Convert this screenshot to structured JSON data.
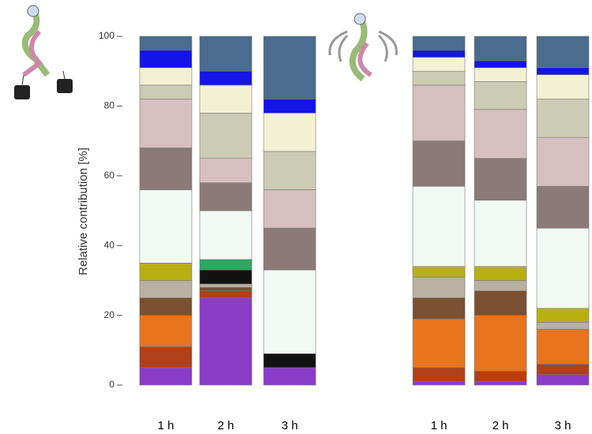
{
  "chart_data": {
    "type": "bar",
    "stacked": true,
    "y_label": "Relative contribution [%]",
    "categories": [
      "1 h",
      "2 h",
      "3 h",
      "1 h",
      "2 h",
      "3 h"
    ],
    "ylim": [
      0,
      100
    ],
    "yticks": [
      0,
      20,
      40,
      60,
      80,
      100
    ],
    "series": [
      {
        "color": "#8a3cc8",
        "values": [
          5,
          25,
          5,
          1,
          1,
          3
        ]
      },
      {
        "color": "#b0401a",
        "values": [
          6,
          2,
          0,
          4,
          3,
          3
        ]
      },
      {
        "color": "#e8741e",
        "values": [
          9,
          0,
          0,
          14,
          16,
          10
        ]
      },
      {
        "color": "#7a5030",
        "values": [
          5,
          1,
          0,
          6,
          7,
          0
        ]
      },
      {
        "color": "#b8b0a0",
        "values": [
          5,
          1,
          0,
          6,
          3,
          2
        ]
      },
      {
        "color": "#111111",
        "values": [
          0,
          4,
          4,
          0,
          0,
          0
        ]
      },
      {
        "color": "#b8b010",
        "values": [
          5,
          0,
          0,
          3,
          4,
          4
        ]
      },
      {
        "color": "#2aa860",
        "values": [
          0,
          3,
          0,
          0,
          0,
          0
        ]
      },
      {
        "color": "#f2faf6",
        "values": [
          21,
          14,
          24,
          23,
          19,
          23
        ]
      },
      {
        "color": "#8c7a78",
        "values": [
          12,
          8,
          12,
          13,
          12,
          12
        ]
      },
      {
        "color": "#d6c0bf",
        "values": [
          14,
          7,
          11,
          16,
          14,
          14
        ]
      },
      {
        "color": "#cccbb4",
        "values": [
          4,
          13,
          11,
          4,
          8,
          11
        ]
      },
      {
        "color": "#f3f1d4",
        "values": [
          5,
          8,
          11,
          4,
          4,
          7
        ]
      },
      {
        "color": "#1414e6",
        "values": [
          5,
          4,
          4,
          2,
          2,
          2
        ]
      },
      {
        "color": "#4a6c8e",
        "values": [
          4,
          10,
          18,
          4,
          7,
          9
        ]
      }
    ]
  }
}
